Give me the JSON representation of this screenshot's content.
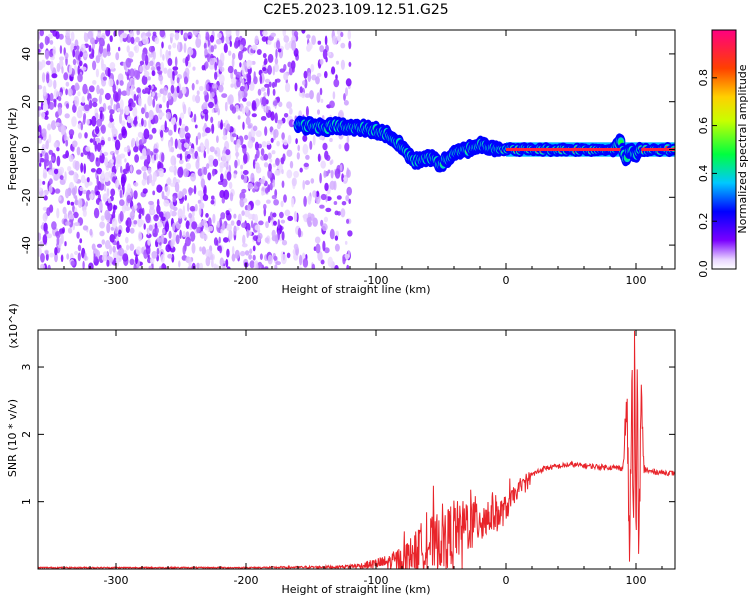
{
  "page": {
    "title": "C2E5.2023.109.12.51.G25"
  },
  "chart_data": [
    {
      "id": "spectrogram",
      "type": "heatmap",
      "title": "C2E5.2023.109.12.51.G25",
      "xlabel": "Height of straight line (km)",
      "ylabel": "Frequency (Hz)",
      "xlim": [
        -360,
        130
      ],
      "ylim": [
        -50,
        50
      ],
      "x_ticks": [
        -300,
        -200,
        -100,
        0,
        100
      ],
      "y_ticks": [
        -40,
        -20,
        0,
        20,
        40
      ],
      "grid": false,
      "colorbar": {
        "label": "Normalized spectral amplitude",
        "range": [
          0,
          1
        ],
        "ticks": [
          0.0,
          0.2,
          0.4,
          0.6,
          0.8
        ],
        "colormap": "rainbow"
      },
      "ridge": {
        "x": [
          -160,
          -150,
          -140,
          -130,
          -120,
          -110,
          -100,
          -90,
          -80,
          -70,
          -60,
          -50,
          -40,
          -30,
          -20,
          -10,
          0,
          10,
          20,
          40,
          60,
          80,
          88,
          92,
          96,
          100,
          104,
          110,
          130
        ],
        "y": [
          10,
          10,
          9,
          10,
          9,
          9,
          8,
          6,
          1,
          -5,
          -3,
          -6,
          -2,
          0,
          2,
          1,
          0,
          0,
          0,
          0,
          0,
          0,
          3,
          -4,
          0,
          -3,
          0,
          0,
          0
        ],
        "amplitude": [
          0.5,
          0.45,
          0.5,
          0.5,
          0.55,
          0.5,
          0.5,
          0.45,
          0.4,
          0.45,
          0.45,
          0.5,
          0.55,
          0.6,
          0.65,
          0.7,
          0.9,
          0.9,
          0.9,
          0.9,
          0.9,
          0.9,
          0.5,
          0.45,
          0.5,
          0.45,
          0.9,
          0.9,
          0.9
        ]
      },
      "noise_region": {
        "x": [
          -360,
          -120
        ],
        "amplitude": 0.15
      }
    },
    {
      "id": "snr",
      "type": "line",
      "title": "",
      "xlabel": "Height of straight line (km)",
      "ylabel": "SNR (10 * v/v)",
      "y_multiplier": "(x10^4)",
      "xlim": [
        -360,
        130
      ],
      "ylim": [
        0,
        3.55
      ],
      "x_ticks": [
        -300,
        -200,
        -100,
        0,
        100
      ],
      "y_ticks": [
        1,
        2,
        3
      ],
      "grid": false,
      "color": "#e8242a",
      "series": [
        {
          "x": [
            -360,
            -300,
            -200,
            -130,
            -110,
            -100,
            -90,
            -80,
            -70,
            -60,
            -55,
            -50,
            -45,
            -40,
            -35,
            -30,
            -25,
            -20,
            -15,
            -10,
            -5,
            0,
            5,
            10,
            20,
            30,
            50,
            70,
            90,
            93,
            95,
            97,
            98,
            99,
            100,
            101,
            102,
            104,
            106,
            110,
            130
          ],
          "y": [
            0.02,
            0.02,
            0.02,
            0.03,
            0.05,
            0.08,
            0.1,
            0.15,
            0.25,
            0.4,
            0.35,
            0.5,
            0.45,
            0.6,
            0.55,
            0.7,
            0.65,
            0.8,
            0.75,
            0.85,
            0.8,
            0.9,
            1.05,
            1.2,
            1.4,
            1.5,
            1.55,
            1.52,
            1.5,
            2.5,
            0.2,
            2.9,
            0.1,
            3.5,
            0.3,
            2.8,
            0.2,
            2.5,
            1.5,
            1.45,
            1.42
          ],
          "noise_amplitude": [
            0.01,
            0.01,
            0.01,
            0.02,
            0.05,
            0.08,
            0.12,
            0.2,
            0.3,
            0.45,
            0.4,
            0.5,
            0.45,
            0.5,
            0.4,
            0.45,
            0.4,
            0.4,
            0.35,
            0.3,
            0.25,
            0.2,
            0.15,
            0.1,
            0.05,
            0.04,
            0.04,
            0.04,
            0.04,
            0.5,
            0.3,
            0.6,
            0.3,
            0.6,
            0.3,
            0.6,
            0.3,
            0.5,
            0.1,
            0.04,
            0.04
          ]
        }
      ]
    }
  ]
}
